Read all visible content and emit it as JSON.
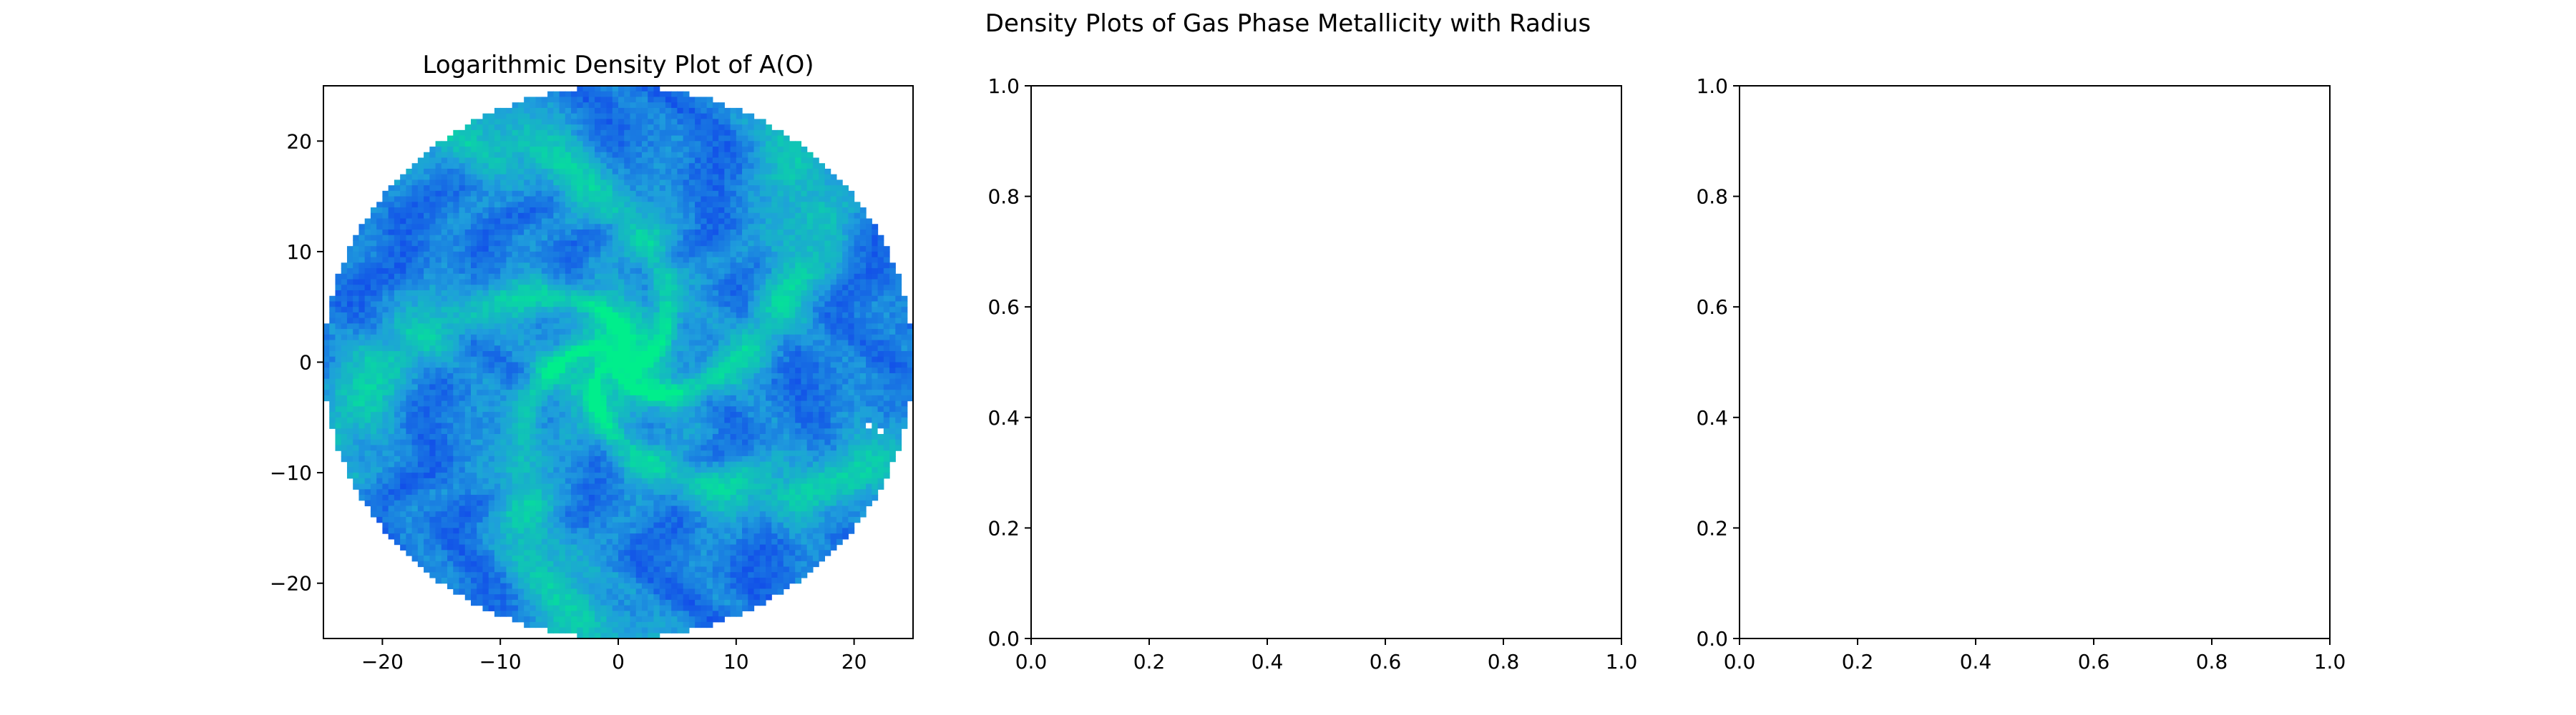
{
  "figure": {
    "suptitle": "Density Plots of Gas Phase Metallicity with Radius"
  },
  "chart_data": [
    {
      "type": "heatmap",
      "title": "Logarithmic Density Plot of A(O)",
      "xlabel": "",
      "ylabel": "",
      "xlim": [
        -25,
        25
      ],
      "ylim": [
        -25,
        25
      ],
      "xticks": [
        -20,
        -10,
        0,
        10,
        20
      ],
      "yticks": [
        -20,
        -10,
        0,
        10,
        20
      ],
      "xtick_labels": [
        "−20",
        "−10",
        "0",
        "10",
        "20"
      ],
      "ytick_labels": [
        "−20",
        "−10",
        "0",
        "10",
        "20"
      ],
      "grid": false,
      "colors": {
        "low": "#0a1ff0",
        "mid": "#1f9edc",
        "high": "#00ee8c"
      },
      "disk_radius": 25,
      "grid_bins": 100,
      "spiral_arms": 5,
      "blank_cells": [
        [
          21.2,
          -5.8
        ],
        [
          22.2,
          -6.2
        ]
      ],
      "values": "log-density of A(O) over a face-on spiral disk; high values (green) trace spiral arms and the center, low values (blue) in inter-arm regions"
    },
    {
      "type": "line",
      "title": "",
      "xlabel": "",
      "ylabel": "",
      "xlim": [
        0,
        1
      ],
      "ylim": [
        0,
        1
      ],
      "xticks": [
        0,
        0.2,
        0.4,
        0.6,
        0.8,
        1
      ],
      "yticks": [
        0,
        0.2,
        0.4,
        0.6,
        0.8,
        1
      ],
      "xtick_labels": [
        "0.0",
        "0.2",
        "0.4",
        "0.6",
        "0.8",
        "1.0"
      ],
      "ytick_labels": [
        "0.0",
        "0.2",
        "0.4",
        "0.6",
        "0.8",
        "1.0"
      ],
      "grid": false,
      "series": []
    },
    {
      "type": "line",
      "title": "",
      "xlabel": "",
      "ylabel": "",
      "xlim": [
        0,
        1
      ],
      "ylim": [
        0,
        1
      ],
      "xticks": [
        0,
        0.2,
        0.4,
        0.6,
        0.8,
        1
      ],
      "yticks": [
        0,
        0.2,
        0.4,
        0.6,
        0.8,
        1
      ],
      "xtick_labels": [
        "0.0",
        "0.2",
        "0.4",
        "0.6",
        "0.8",
        "1.0"
      ],
      "ytick_labels": [
        "0.0",
        "0.2",
        "0.4",
        "0.6",
        "0.8",
        "1.0"
      ],
      "grid": false,
      "series": []
    }
  ]
}
